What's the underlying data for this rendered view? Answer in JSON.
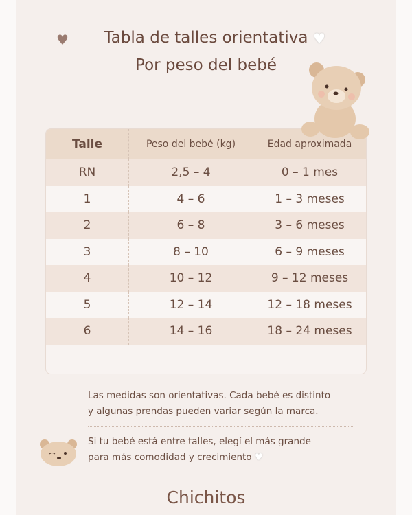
{
  "title": {
    "line1": "Tabla de talles orientativa",
    "line2": "Por peso del bebé"
  },
  "table": {
    "headers": [
      "Talle",
      "Peso del bebé (kg)",
      "Edad aproximada"
    ],
    "rows": [
      [
        "RN",
        "2,5 – 4",
        "0 – 1 mes"
      ],
      [
        "1",
        "4 – 6",
        "1 – 3 meses"
      ],
      [
        "2",
        "6 – 8",
        "3 – 6 meses"
      ],
      [
        "3",
        "8 – 10",
        "6 – 9 meses"
      ],
      [
        "4",
        "10 – 12",
        "9 – 12 meses"
      ],
      [
        "5",
        "12 – 14",
        "12 – 18 meses"
      ],
      [
        "6",
        "14 – 16",
        "18 – 24 meses"
      ]
    ]
  },
  "notes": {
    "disclaimer_1": "Las medidas son orientativas. Cada bebé es distinto",
    "disclaimer_2": "y algunas prendas pueden variar según la marca.",
    "tip_1": "Si tu bebé está entre talles, elegí el más grande",
    "tip_2": "para más comodidad y crecimiento"
  },
  "brand": "Chichitos",
  "icons": {
    "heart_left": "brown-heart-icon",
    "heart_right": "white-heart-icon",
    "bear": "teddy-bear-illustration"
  }
}
